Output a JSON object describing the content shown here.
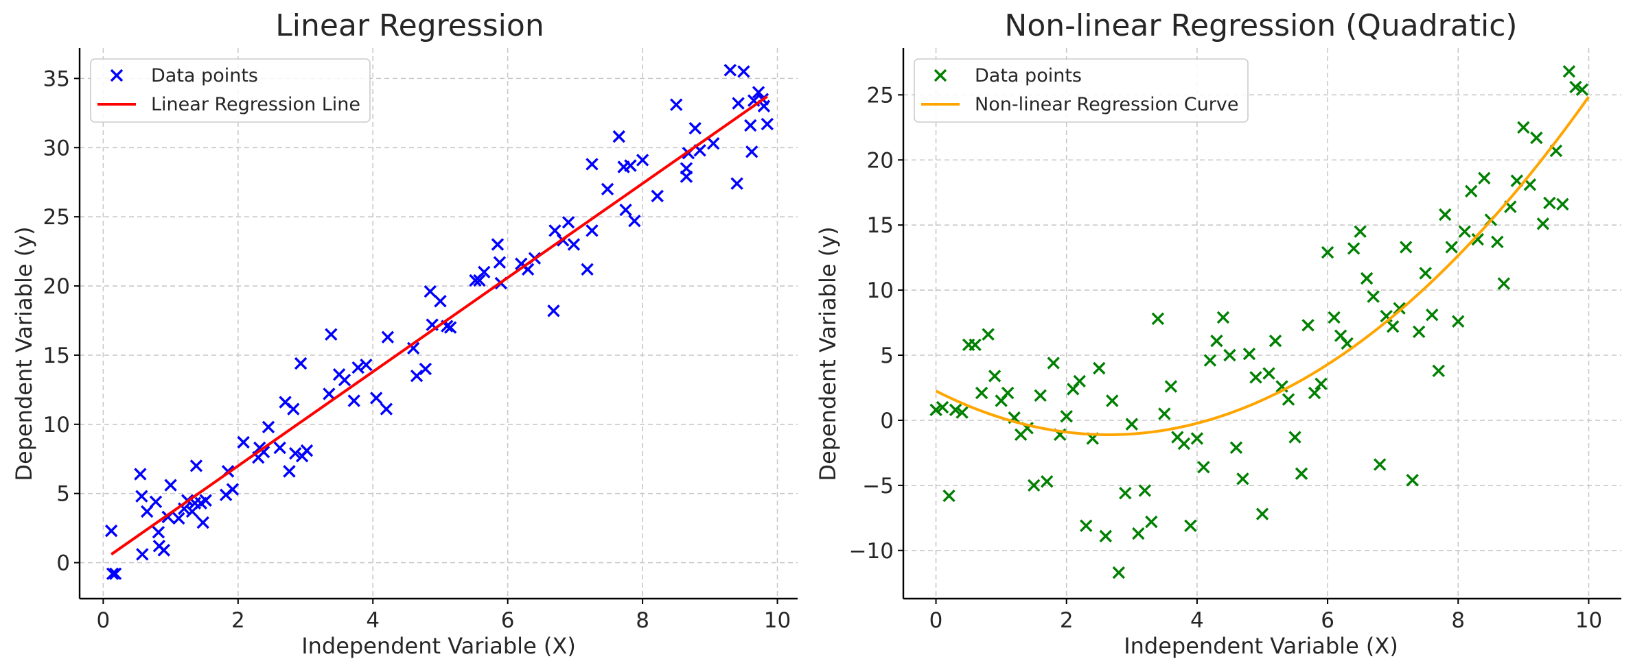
{
  "chart_data": [
    {
      "type": "scatter",
      "title": "Linear Regression",
      "xlabel": "Independent Variable (X)",
      "ylabel": "Dependent Variable (y)",
      "xlim": [
        -0.35,
        10.3
      ],
      "ylim": [
        -2.6,
        37.2
      ],
      "xticks": [
        0,
        2,
        4,
        6,
        8,
        10
      ],
      "yticks": [
        0,
        5,
        10,
        15,
        20,
        25,
        30,
        35
      ],
      "grid": true,
      "legend_position": "top-left",
      "series": [
        {
          "name": "Data points",
          "kind": "scatter",
          "marker": "x",
          "color": "#0000ff",
          "points": [
            [
              0.12,
              2.3
            ],
            [
              0.14,
              -0.8
            ],
            [
              0.18,
              -0.8
            ],
            [
              0.55,
              6.4
            ],
            [
              0.57,
              4.8
            ],
            [
              0.58,
              0.6
            ],
            [
              0.65,
              3.7
            ],
            [
              0.78,
              4.4
            ],
            [
              0.82,
              2.2
            ],
            [
              0.83,
              1.2
            ],
            [
              0.9,
              0.9
            ],
            [
              0.96,
              3.3
            ],
            [
              1.0,
              5.6
            ],
            [
              1.12,
              3.2
            ],
            [
              1.2,
              3.9
            ],
            [
              1.25,
              4.5
            ],
            [
              1.32,
              3.7
            ],
            [
              1.36,
              4.3
            ],
            [
              1.38,
              7.0
            ],
            [
              1.45,
              4.3
            ],
            [
              1.48,
              2.9
            ],
            [
              1.52,
              4.5
            ],
            [
              1.82,
              4.9
            ],
            [
              1.85,
              6.6
            ],
            [
              1.92,
              5.3
            ],
            [
              2.08,
              8.7
            ],
            [
              2.3,
              7.6
            ],
            [
              2.32,
              8.3
            ],
            [
              2.38,
              8.0
            ],
            [
              2.45,
              9.8
            ],
            [
              2.62,
              8.3
            ],
            [
              2.7,
              11.6
            ],
            [
              2.76,
              6.6
            ],
            [
              2.82,
              11.1
            ],
            [
              2.85,
              7.9
            ],
            [
              2.93,
              14.4
            ],
            [
              2.95,
              7.7
            ],
            [
              3.02,
              8.1
            ],
            [
              3.35,
              12.2
            ],
            [
              3.38,
              16.5
            ],
            [
              3.5,
              13.6
            ],
            [
              3.58,
              13.2
            ],
            [
              3.72,
              11.7
            ],
            [
              3.78,
              14.1
            ],
            [
              3.9,
              14.3
            ],
            [
              4.05,
              11.9
            ],
            [
              4.2,
              11.1
            ],
            [
              4.22,
              16.3
            ],
            [
              4.6,
              15.5
            ],
            [
              4.65,
              13.5
            ],
            [
              4.78,
              14.0
            ],
            [
              4.85,
              19.6
            ],
            [
              4.88,
              17.2
            ],
            [
              5.0,
              18.9
            ],
            [
              5.1,
              17.1
            ],
            [
              5.15,
              17.0
            ],
            [
              5.52,
              20.4
            ],
            [
              5.58,
              20.4
            ],
            [
              5.65,
              21.0
            ],
            [
              5.85,
              23.0
            ],
            [
              5.88,
              21.7
            ],
            [
              5.9,
              20.2
            ],
            [
              6.2,
              21.6
            ],
            [
              6.3,
              21.2
            ],
            [
              6.4,
              22.0
            ],
            [
              6.68,
              18.2
            ],
            [
              6.7,
              24.0
            ],
            [
              6.82,
              23.3
            ],
            [
              6.9,
              24.6
            ],
            [
              6.98,
              23.0
            ],
            [
              7.18,
              21.2
            ],
            [
              7.25,
              24.0
            ],
            [
              7.25,
              28.8
            ],
            [
              7.48,
              27.0
            ],
            [
              7.65,
              30.8
            ],
            [
              7.72,
              28.6
            ],
            [
              7.75,
              25.5
            ],
            [
              7.82,
              28.7
            ],
            [
              7.88,
              24.7
            ],
            [
              8.0,
              29.1
            ],
            [
              8.22,
              26.5
            ],
            [
              8.5,
              33.1
            ],
            [
              8.65,
              28.5
            ],
            [
              8.65,
              27.9
            ],
            [
              8.68,
              29.6
            ],
            [
              8.78,
              31.4
            ],
            [
              8.85,
              29.8
            ],
            [
              9.05,
              30.3
            ],
            [
              9.3,
              35.6
            ],
            [
              9.4,
              27.4
            ],
            [
              9.42,
              33.2
            ],
            [
              9.5,
              35.5
            ],
            [
              9.6,
              31.6
            ],
            [
              9.62,
              29.7
            ],
            [
              9.65,
              33.4
            ],
            [
              9.72,
              34.0
            ],
            [
              9.78,
              33.5
            ],
            [
              9.8,
              33.0
            ],
            [
              9.85,
              31.7
            ]
          ]
        },
        {
          "name": "Linear Regression Line",
          "kind": "line",
          "color": "#ff0000",
          "points": [
            [
              0.12,
              0.6
            ],
            [
              9.85,
              33.7
            ]
          ]
        }
      ]
    },
    {
      "type": "scatter",
      "title": "Non-linear Regression (Quadratic)",
      "xlabel": "Independent Variable (X)",
      "ylabel": "Dependent Variable (y)",
      "xlim": [
        -0.5,
        10.5
      ],
      "ylim": [
        -13.7,
        28.6
      ],
      "xticks": [
        0,
        2,
        4,
        6,
        8,
        10
      ],
      "yticks": [
        -10,
        -5,
        0,
        5,
        10,
        15,
        20,
        25
      ],
      "grid": true,
      "legend_position": "top-left",
      "series": [
        {
          "name": "Data points",
          "kind": "scatter",
          "marker": "x",
          "color": "#008000",
          "points": [
            [
              0.0,
              0.8
            ],
            [
              0.1,
              1.0
            ],
            [
              0.2,
              -5.8
            ],
            [
              0.3,
              0.8
            ],
            [
              0.4,
              0.6
            ],
            [
              0.5,
              5.8
            ],
            [
              0.6,
              5.8
            ],
            [
              0.7,
              2.1
            ],
            [
              0.8,
              6.6
            ],
            [
              0.9,
              3.4
            ],
            [
              1.0,
              1.5
            ],
            [
              1.1,
              2.1
            ],
            [
              1.2,
              0.2
            ],
            [
              1.3,
              -1.1
            ],
            [
              1.4,
              -0.6
            ],
            [
              1.5,
              -5.0
            ],
            [
              1.6,
              1.9
            ],
            [
              1.7,
              -4.7
            ],
            [
              1.8,
              4.4
            ],
            [
              1.9,
              -1.1
            ],
            [
              2.0,
              0.3
            ],
            [
              2.1,
              2.4
            ],
            [
              2.2,
              3.0
            ],
            [
              2.3,
              -8.1
            ],
            [
              2.4,
              -1.4
            ],
            [
              2.5,
              4.0
            ],
            [
              2.6,
              -8.9
            ],
            [
              2.7,
              1.5
            ],
            [
              2.8,
              -11.7
            ],
            [
              2.9,
              -5.6
            ],
            [
              3.0,
              -0.3
            ],
            [
              3.1,
              -8.7
            ],
            [
              3.2,
              -5.4
            ],
            [
              3.3,
              -7.8
            ],
            [
              3.4,
              7.8
            ],
            [
              3.5,
              0.5
            ],
            [
              3.6,
              2.6
            ],
            [
              3.7,
              -1.3
            ],
            [
              3.8,
              -1.8
            ],
            [
              3.9,
              -8.1
            ],
            [
              4.0,
              -1.4
            ],
            [
              4.1,
              -3.6
            ],
            [
              4.2,
              4.6
            ],
            [
              4.3,
              6.1
            ],
            [
              4.4,
              7.9
            ],
            [
              4.5,
              5.0
            ],
            [
              4.6,
              -2.1
            ],
            [
              4.7,
              -4.5
            ],
            [
              4.8,
              5.1
            ],
            [
              4.9,
              3.3
            ],
            [
              5.0,
              -7.2
            ],
            [
              5.1,
              3.6
            ],
            [
              5.2,
              6.1
            ],
            [
              5.3,
              2.6
            ],
            [
              5.4,
              1.6
            ],
            [
              5.5,
              -1.3
            ],
            [
              5.6,
              -4.1
            ],
            [
              5.7,
              7.3
            ],
            [
              5.8,
              2.1
            ],
            [
              5.9,
              2.8
            ],
            [
              6.0,
              12.9
            ],
            [
              6.1,
              7.9
            ],
            [
              6.2,
              6.5
            ],
            [
              6.3,
              5.9
            ],
            [
              6.4,
              13.2
            ],
            [
              6.5,
              14.5
            ],
            [
              6.6,
              10.9
            ],
            [
              6.7,
              9.5
            ],
            [
              6.8,
              -3.4
            ],
            [
              6.9,
              8.0
            ],
            [
              7.0,
              7.2
            ],
            [
              7.1,
              8.6
            ],
            [
              7.2,
              13.3
            ],
            [
              7.3,
              -4.6
            ],
            [
              7.4,
              6.8
            ],
            [
              7.5,
              11.3
            ],
            [
              7.6,
              8.1
            ],
            [
              7.7,
              3.8
            ],
            [
              7.8,
              15.8
            ],
            [
              7.9,
              13.3
            ],
            [
              8.0,
              7.6
            ],
            [
              8.1,
              14.5
            ],
            [
              8.2,
              17.6
            ],
            [
              8.3,
              13.9
            ],
            [
              8.4,
              18.6
            ],
            [
              8.5,
              15.4
            ],
            [
              8.6,
              13.7
            ],
            [
              8.7,
              10.5
            ],
            [
              8.8,
              16.4
            ],
            [
              8.9,
              18.4
            ],
            [
              9.0,
              22.5
            ],
            [
              9.1,
              18.1
            ],
            [
              9.2,
              21.7
            ],
            [
              9.3,
              15.1
            ],
            [
              9.4,
              16.7
            ],
            [
              9.5,
              20.7
            ],
            [
              9.6,
              16.6
            ],
            [
              9.7,
              26.8
            ],
            [
              9.8,
              25.6
            ],
            [
              9.9,
              25.4
            ]
          ]
        },
        {
          "name": "Non-linear Regression Curve",
          "kind": "curve",
          "color": "#ffa500",
          "coefficients": {
            "a": 0.48,
            "b": -2.54,
            "c": 2.25
          },
          "x_range": [
            0,
            10
          ]
        }
      ]
    }
  ]
}
